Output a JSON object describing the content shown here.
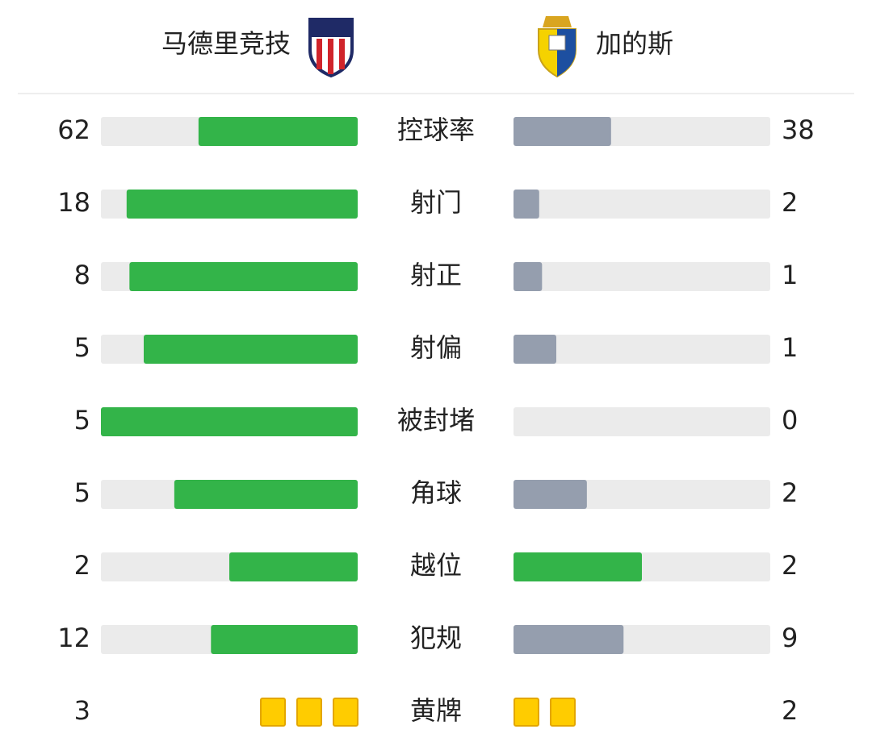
{
  "header": {
    "home_team": "马德里竞技",
    "away_team": "加的斯"
  },
  "colors": {
    "leader": "#33b449",
    "trailer": "#959eae",
    "track": "#ebebeb",
    "card_fill": "#ffcc00",
    "card_border": "#e3a600"
  },
  "stats": [
    {
      "label": "控球率",
      "home": 62,
      "away": 38,
      "display": "bar"
    },
    {
      "label": "射门",
      "home": 18,
      "away": 2,
      "display": "bar"
    },
    {
      "label": "射正",
      "home": 8,
      "away": 1,
      "display": "bar"
    },
    {
      "label": "射偏",
      "home": 5,
      "away": 1,
      "display": "bar"
    },
    {
      "label": "被封堵",
      "home": 5,
      "away": 0,
      "display": "bar"
    },
    {
      "label": "角球",
      "home": 5,
      "away": 2,
      "display": "bar"
    },
    {
      "label": "越位",
      "home": 2,
      "away": 2,
      "display": "bar"
    },
    {
      "label": "犯规",
      "home": 12,
      "away": 9,
      "display": "bar"
    },
    {
      "label": "黄牌",
      "home": 3,
      "away": 2,
      "display": "cards"
    }
  ]
}
